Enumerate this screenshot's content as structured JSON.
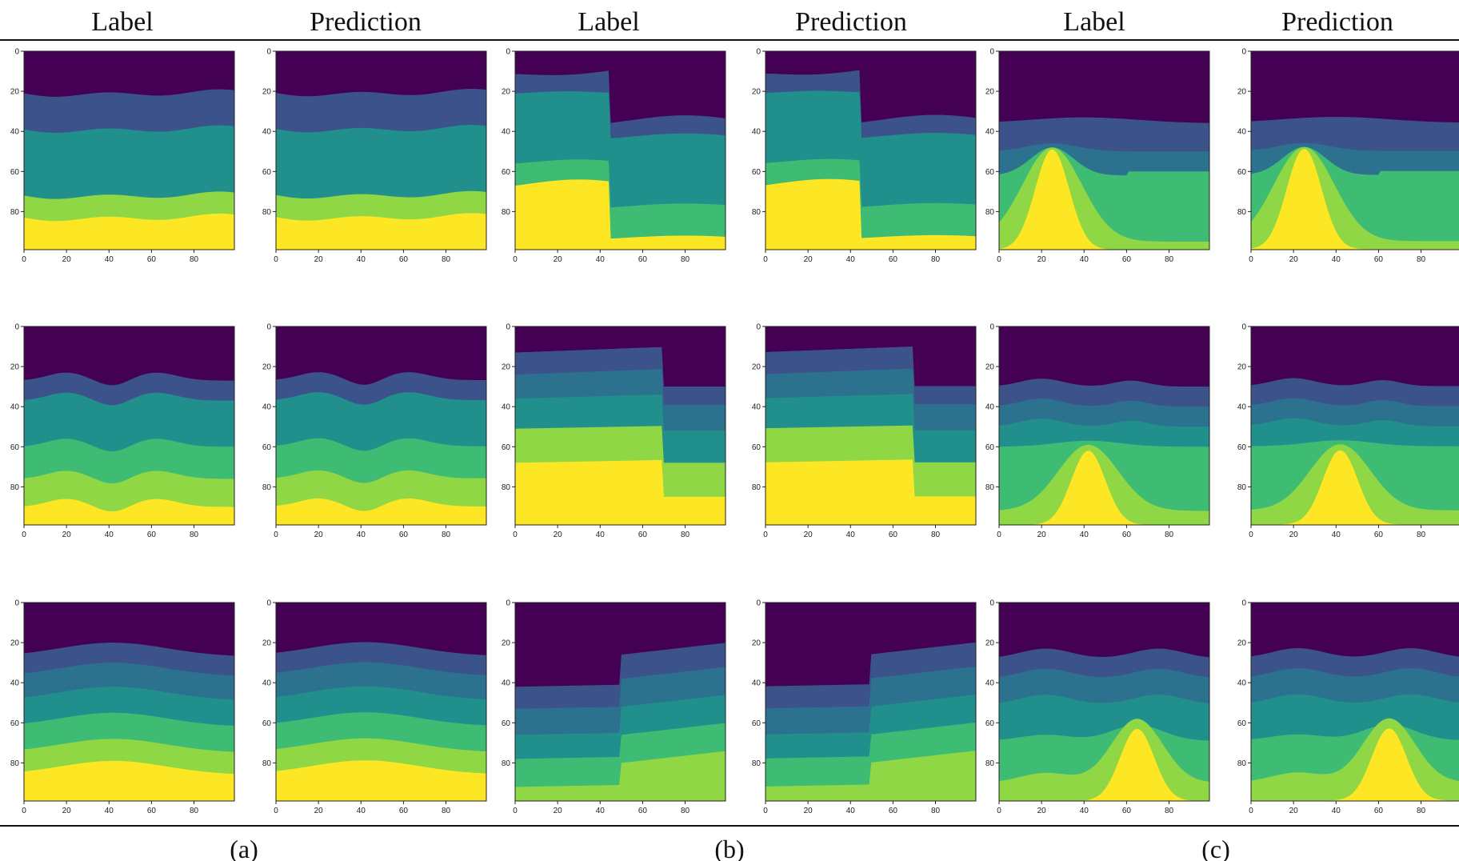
{
  "figure": {
    "column_titles": [
      "Label",
      "Prediction",
      "Label",
      "Prediction",
      "Label",
      "Prediction"
    ],
    "group_captions": [
      "(a)",
      "(b)",
      "(c)"
    ]
  },
  "colors": {
    "layers": [
      "#440154",
      "#3b528b",
      "#2c728e",
      "#21908c",
      "#3fbc73",
      "#8fd744",
      "#fde725"
    ]
  },
  "chart_data": {
    "type": "heatmap",
    "description_axes": {
      "x_ticks": [
        0,
        20,
        40,
        60,
        80
      ],
      "y_ticks": [
        0,
        20,
        40,
        60,
        80
      ],
      "xlim": [
        0,
        99
      ],
      "ylim": [
        99,
        0
      ]
    },
    "panels": [
      {
        "group": "a",
        "row": 0,
        "kind": "label"
      },
      {
        "group": "a",
        "row": 0,
        "kind": "prediction"
      },
      {
        "group": "b",
        "row": 0,
        "kind": "label"
      },
      {
        "group": "b",
        "row": 0,
        "kind": "prediction"
      },
      {
        "group": "c",
        "row": 0,
        "kind": "label"
      },
      {
        "group": "c",
        "row": 0,
        "kind": "prediction"
      },
      {
        "group": "a",
        "row": 1,
        "kind": "label"
      },
      {
        "group": "a",
        "row": 1,
        "kind": "prediction"
      },
      {
        "group": "b",
        "row": 1,
        "kind": "label"
      },
      {
        "group": "b",
        "row": 1,
        "kind": "prediction"
      },
      {
        "group": "c",
        "row": 1,
        "kind": "label"
      },
      {
        "group": "c",
        "row": 1,
        "kind": "prediction"
      },
      {
        "group": "a",
        "row": 2,
        "kind": "label"
      },
      {
        "group": "a",
        "row": 2,
        "kind": "prediction"
      },
      {
        "group": "b",
        "row": 2,
        "kind": "label"
      },
      {
        "group": "b",
        "row": 2,
        "kind": "prediction"
      },
      {
        "group": "c",
        "row": 2,
        "kind": "label"
      },
      {
        "group": "c",
        "row": 2,
        "kind": "prediction"
      }
    ]
  }
}
